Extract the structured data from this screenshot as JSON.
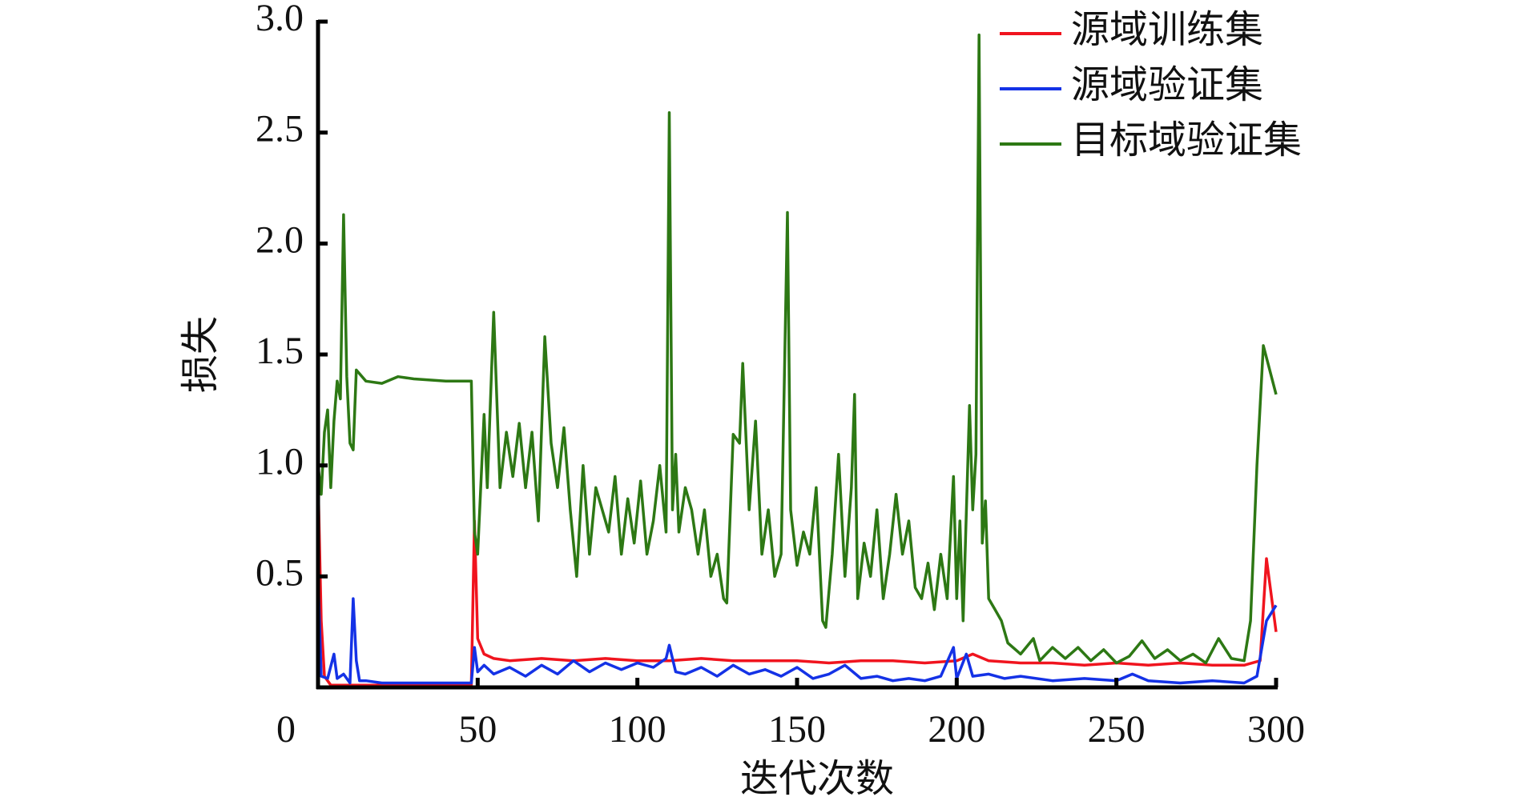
{
  "chart_data": {
    "type": "line",
    "xlabel": "迭代次数",
    "ylabel": "损失",
    "xlim": [
      0,
      300
    ],
    "xticks": [
      0,
      50,
      100,
      150,
      200,
      250,
      300
    ],
    "ylim": [
      0,
      3
    ],
    "yticks": [
      0.5,
      {
        "value": 1,
        "label": "1.0"
      },
      1.5,
      {
        "value": 2,
        "label": "2.0"
      },
      2.5,
      {
        "value": 3,
        "label": "3.0"
      }
    ],
    "legend": "upper right",
    "series": [
      {
        "name": "源域训练集",
        "color": "#f0141e",
        "x": [
          0,
          1,
          2,
          4,
          10,
          20,
          30,
          40,
          48,
          49,
          50,
          52,
          55,
          60,
          70,
          80,
          90,
          100,
          110,
          120,
          130,
          140,
          150,
          160,
          170,
          180,
          190,
          200,
          205,
          210,
          220,
          230,
          240,
          250,
          260,
          270,
          280,
          290,
          295,
          297,
          300
        ],
        "values": [
          0.95,
          0.3,
          0.05,
          0.01,
          0.01,
          0.01,
          0.01,
          0.01,
          0.01,
          0.75,
          0.22,
          0.15,
          0.13,
          0.12,
          0.13,
          0.12,
          0.13,
          0.12,
          0.12,
          0.13,
          0.12,
          0.12,
          0.12,
          0.11,
          0.12,
          0.12,
          0.11,
          0.12,
          0.15,
          0.12,
          0.11,
          0.11,
          0.1,
          0.11,
          0.1,
          0.11,
          0.1,
          0.1,
          0.12,
          0.58,
          0.25
        ]
      },
      {
        "name": "源域验证集",
        "color": "#1432e6",
        "x": [
          0,
          1,
          3,
          5,
          6,
          8,
          10,
          11,
          12,
          13,
          15,
          20,
          30,
          40,
          48,
          49,
          50,
          52,
          55,
          60,
          65,
          70,
          75,
          80,
          85,
          90,
          95,
          100,
          105,
          109,
          110,
          112,
          115,
          120,
          125,
          130,
          135,
          140,
          145,
          150,
          155,
          160,
          165,
          170,
          175,
          180,
          185,
          190,
          195,
          199,
          200,
          203,
          205,
          210,
          215,
          220,
          230,
          240,
          250,
          255,
          260,
          270,
          280,
          290,
          294,
          297,
          300
        ],
        "values": [
          0.5,
          0.05,
          0.04,
          0.15,
          0.04,
          0.06,
          0.02,
          0.4,
          0.12,
          0.03,
          0.03,
          0.02,
          0.02,
          0.02,
          0.02,
          0.18,
          0.07,
          0.1,
          0.06,
          0.09,
          0.05,
          0.1,
          0.06,
          0.12,
          0.07,
          0.11,
          0.08,
          0.11,
          0.09,
          0.13,
          0.19,
          0.07,
          0.06,
          0.09,
          0.05,
          0.1,
          0.06,
          0.08,
          0.05,
          0.09,
          0.04,
          0.06,
          0.1,
          0.04,
          0.05,
          0.03,
          0.04,
          0.03,
          0.05,
          0.18,
          0.04,
          0.15,
          0.05,
          0.06,
          0.04,
          0.05,
          0.03,
          0.04,
          0.03,
          0.06,
          0.03,
          0.02,
          0.03,
          0.02,
          0.05,
          0.3,
          0.37
        ]
      },
      {
        "name": "目标域验证集",
        "color": "#2d7814",
        "x": [
          0,
          1,
          2,
          3,
          4,
          5,
          6,
          7,
          8,
          9,
          10,
          11,
          12,
          15,
          20,
          25,
          30,
          40,
          48,
          49,
          50,
          52,
          53,
          55,
          57,
          59,
          61,
          63,
          65,
          67,
          69,
          71,
          73,
          75,
          77,
          79,
          81,
          83,
          85,
          87,
          89,
          91,
          93,
          95,
          97,
          99,
          101,
          103,
          105,
          107,
          109,
          110,
          111,
          112,
          113,
          115,
          117,
          119,
          121,
          123,
          125,
          127,
          128,
          130,
          132,
          133,
          135,
          137,
          139,
          141,
          143,
          145,
          147,
          148,
          150,
          152,
          154,
          156,
          158,
          159,
          161,
          163,
          165,
          167,
          168,
          169,
          171,
          173,
          175,
          177,
          179,
          181,
          183,
          185,
          187,
          189,
          191,
          193,
          195,
          197,
          199,
          200,
          201,
          202,
          204,
          205,
          206,
          207,
          208,
          209,
          210,
          212,
          214,
          216,
          220,
          224,
          226,
          230,
          234,
          238,
          242,
          246,
          250,
          254,
          258,
          262,
          266,
          270,
          274,
          278,
          282,
          286,
          290,
          292,
          294,
          296,
          300
        ],
        "values": [
          1.0,
          0.87,
          1.15,
          1.25,
          0.9,
          1.2,
          1.38,
          1.3,
          2.13,
          1.4,
          1.1,
          1.07,
          1.43,
          1.38,
          1.37,
          1.4,
          1.39,
          1.38,
          1.38,
          0.7,
          0.6,
          1.23,
          0.9,
          1.69,
          0.9,
          1.15,
          0.95,
          1.19,
          0.9,
          1.15,
          0.75,
          1.58,
          1.1,
          0.9,
          1.17,
          0.8,
          0.5,
          1.0,
          0.6,
          0.9,
          0.8,
          0.7,
          0.95,
          0.6,
          0.85,
          0.65,
          0.93,
          0.6,
          0.75,
          1.0,
          0.7,
          2.59,
          0.8,
          1.05,
          0.7,
          0.9,
          0.8,
          0.6,
          0.8,
          0.5,
          0.6,
          0.4,
          0.38,
          1.14,
          1.1,
          1.46,
          0.8,
          1.2,
          0.6,
          0.8,
          0.5,
          0.6,
          2.14,
          0.8,
          0.55,
          0.7,
          0.6,
          0.9,
          0.3,
          0.27,
          0.6,
          1.05,
          0.5,
          0.9,
          1.32,
          0.4,
          0.65,
          0.5,
          0.8,
          0.4,
          0.6,
          0.87,
          0.6,
          0.75,
          0.45,
          0.4,
          0.56,
          0.35,
          0.6,
          0.4,
          0.95,
          0.4,
          0.75,
          0.3,
          1.27,
          0.8,
          1.05,
          2.94,
          0.65,
          0.84,
          0.4,
          0.35,
          0.3,
          0.2,
          0.15,
          0.22,
          0.12,
          0.18,
          0.13,
          0.18,
          0.12,
          0.17,
          0.11,
          0.14,
          0.21,
          0.13,
          0.17,
          0.12,
          0.15,
          0.11,
          0.22,
          0.13,
          0.12,
          0.3,
          1.0,
          1.54,
          1.32
        ]
      }
    ]
  }
}
